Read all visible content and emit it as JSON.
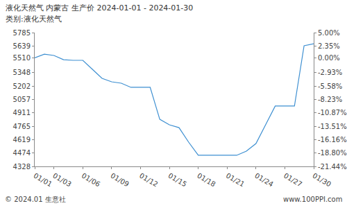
{
  "chart_data": {
    "type": "line",
    "title": "液化天然气 内蒙古 生产价 2024-01-01 - 2024-01-30",
    "subtitle": "类别:液化天然气",
    "annotations": [
      "© 2024.01 生意社",
      "www.100PPI.com"
    ],
    "categories": [
      "01/01",
      null,
      "01/03",
      null,
      null,
      "01/06",
      null,
      null,
      "01/09",
      null,
      null,
      "01/12",
      null,
      null,
      "01/15",
      null,
      null,
      "01/18",
      null,
      null,
      "01/21",
      null,
      null,
      "01/24",
      null,
      null,
      "01/27",
      null,
      null,
      "01/30"
    ],
    "values": [
      5510,
      5550,
      5536,
      5490,
      5483,
      5483,
      5385,
      5287,
      5249,
      5234,
      5189,
      5189,
      5189,
      4841,
      4781,
      4750,
      4592,
      4449,
      4449,
      4449,
      4449,
      4449,
      4494,
      4577,
      4781,
      4985,
      4985,
      4985,
      5642,
      5664
    ],
    "color": "#3d8fd1",
    "ylim": [
      4328,
      5785
    ],
    "yticks": [
      4328,
      4474,
      4619,
      4765,
      4911,
      5057,
      5202,
      5348,
      5510,
      5639,
      5785
    ],
    "y2lim": [
      -21.44,
      5.0
    ],
    "y2ticks": [
      {
        "value": -21.44,
        "label": "-21.44%"
      },
      {
        "value": -18.8,
        "label": "-18.80%"
      },
      {
        "value": -16.16,
        "label": "-16.16%"
      },
      {
        "value": -13.51,
        "label": "-13.51%"
      },
      {
        "value": -10.87,
        "label": "-10.87%"
      },
      {
        "value": -8.23,
        "label": "-8.23%"
      },
      {
        "value": -5.58,
        "label": "-5.58%"
      },
      {
        "value": -2.93,
        "label": "-2.93%"
      },
      {
        "value": 0,
        "label": "0.00%"
      },
      {
        "value": 2.35,
        "label": "2.35%"
      },
      {
        "value": 5,
        "label": "5.00%"
      }
    ],
    "grid": false
  }
}
